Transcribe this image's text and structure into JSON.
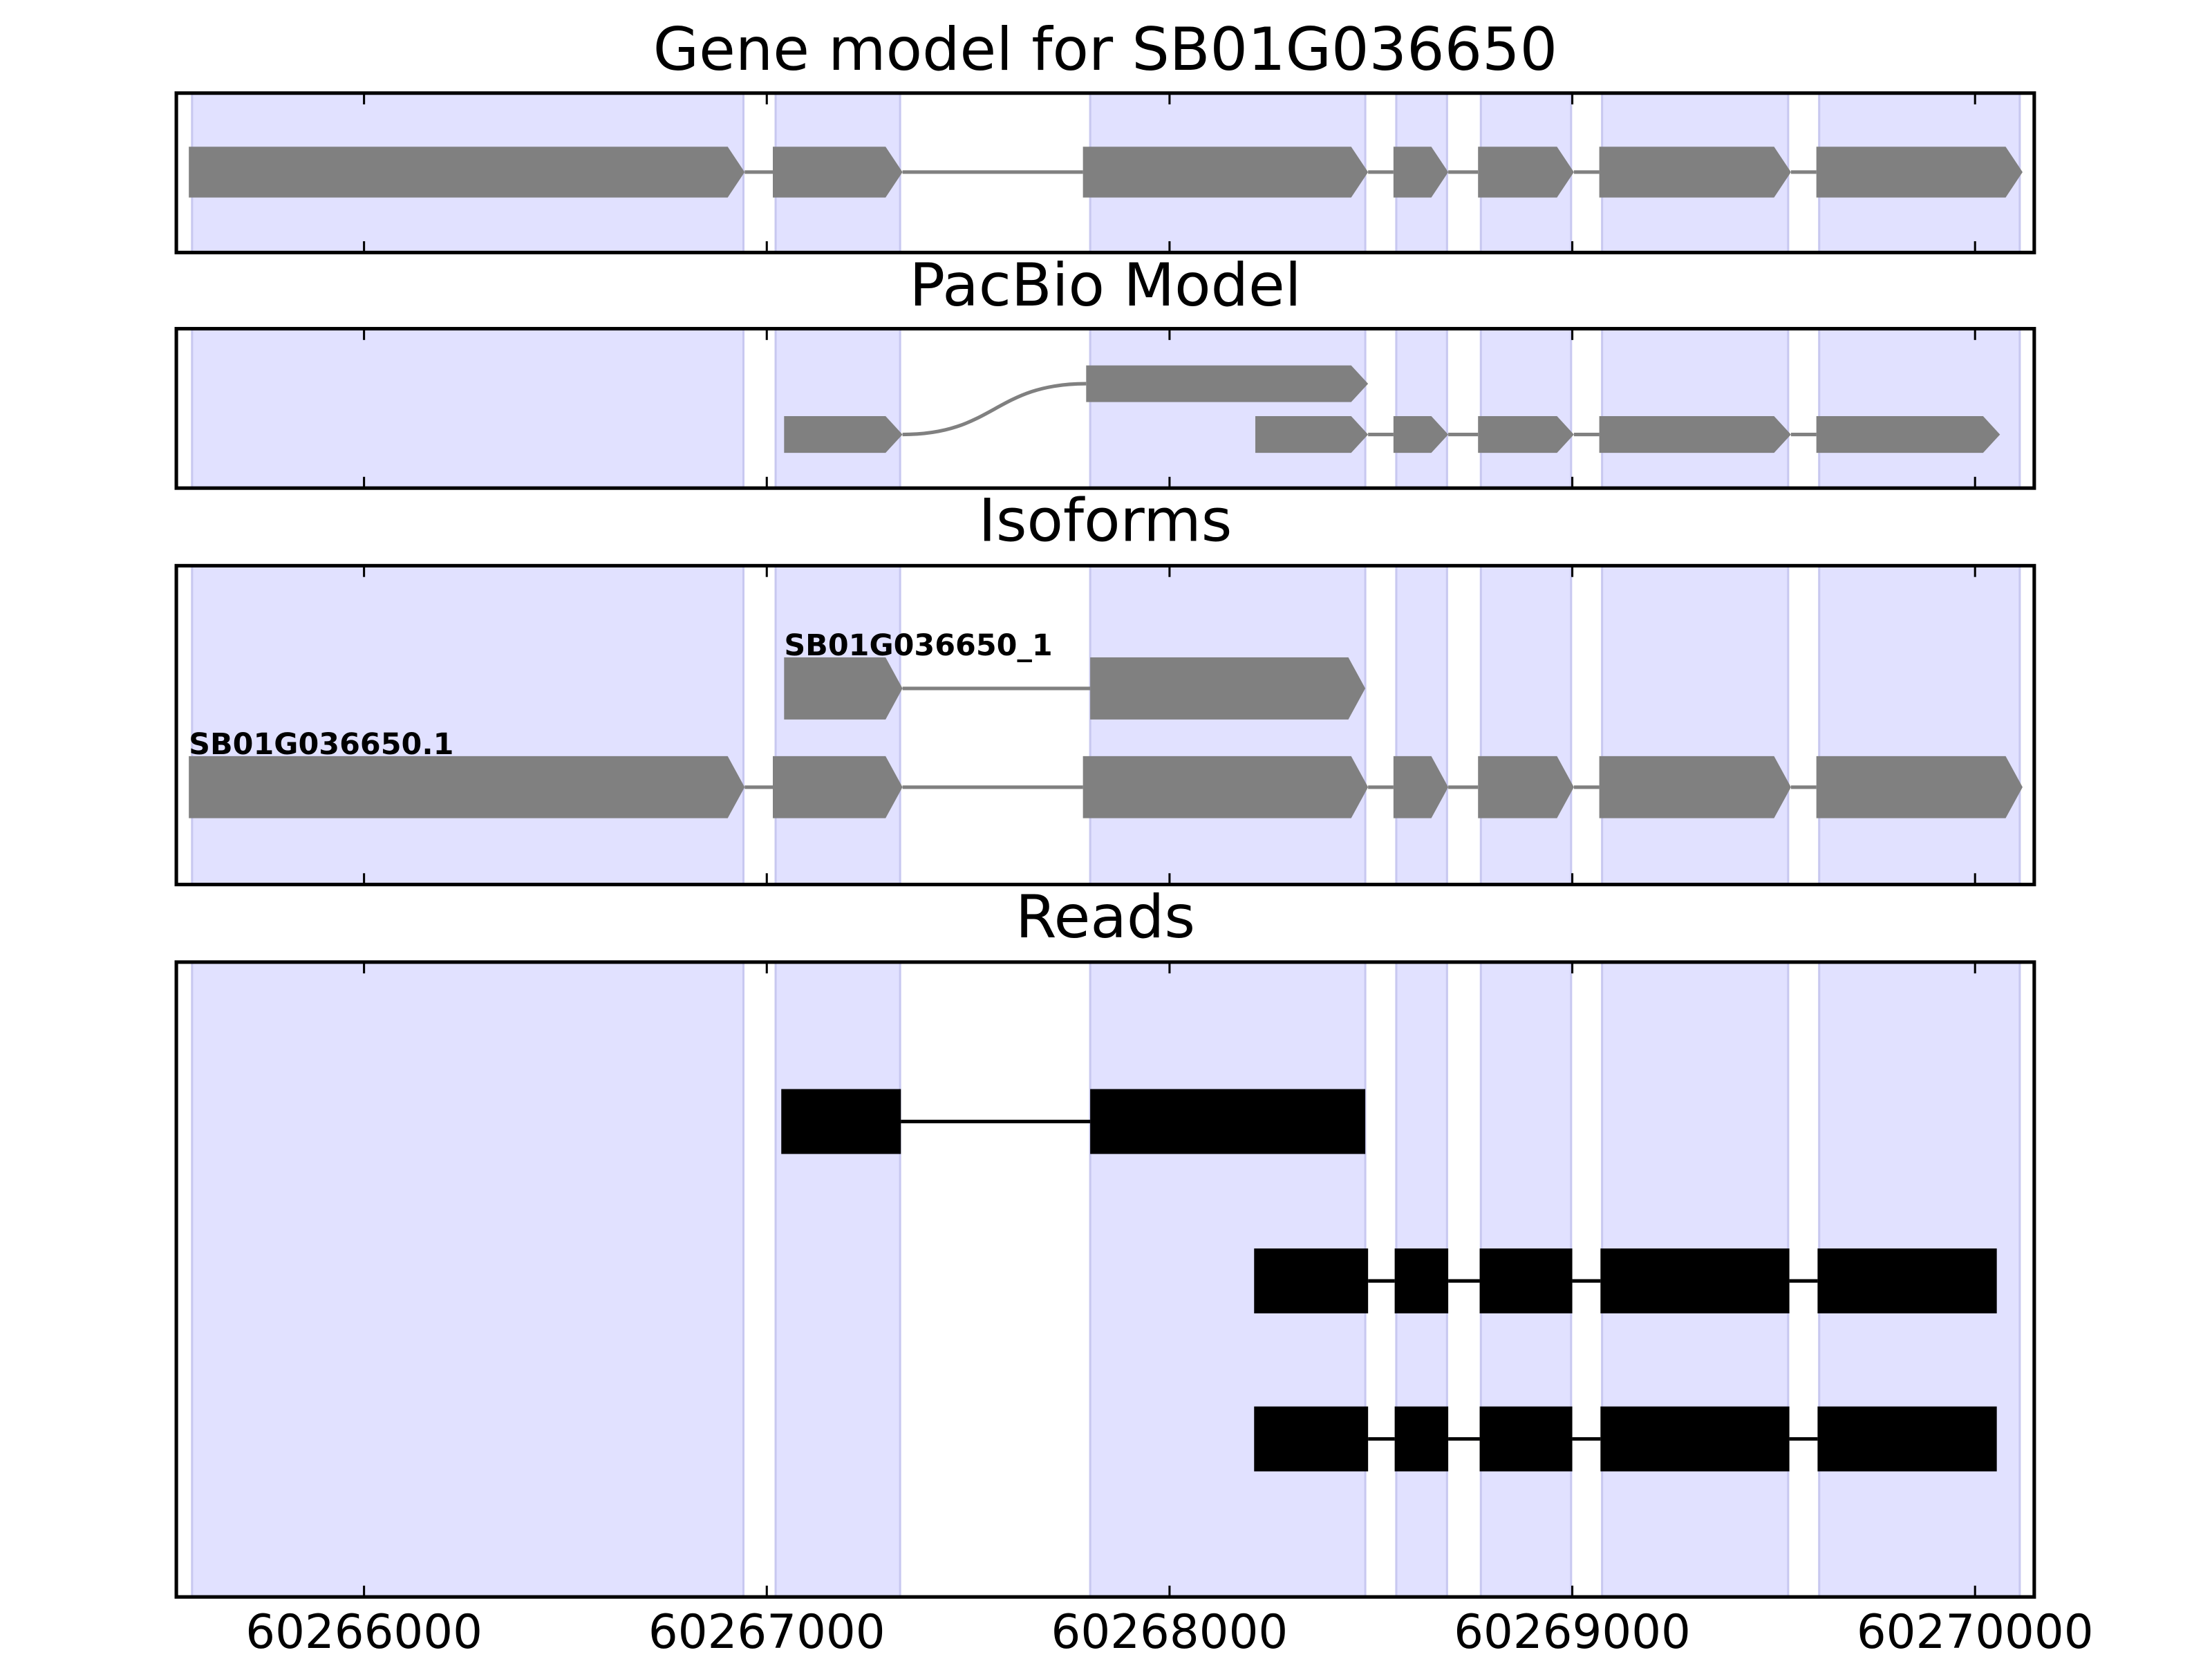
{
  "chart_data": [
    {
      "type": "gene",
      "title": "Gene model for SB01G036650",
      "color": "#808080",
      "region_color": "#e1e1ff",
      "xlim": [
        60265534,
        60270147
      ],
      "xticks": [
        60266000,
        60267000,
        60268000,
        60269000,
        60270000
      ],
      "regions": [
        [
          60265573,
          60266942
        ],
        [
          60267022,
          60267331
        ],
        [
          60267803,
          60268486
        ],
        [
          60268563,
          60268689
        ],
        [
          60268773,
          60268997
        ],
        [
          60269074,
          60269536
        ],
        [
          60269613,
          60270111
        ]
      ],
      "transcripts": [
        {
          "exons": [
            [
              60265565,
              60266945
            ],
            [
              60267015,
              60267337
            ],
            [
              60267785,
              60268493
            ],
            [
              60268556,
              60268692
            ],
            [
              60268766,
              60269004
            ],
            [
              60269067,
              60269543
            ],
            [
              60269606,
              60270118
            ]
          ]
        }
      ]
    },
    {
      "type": "gene",
      "title": "PacBio Model",
      "color": "#808080",
      "region_color": "#e1e1ff",
      "xlim": [
        60265534,
        60270147
      ],
      "xticks": [
        60266000,
        60267000,
        60268000,
        60269000,
        60270000
      ],
      "regions": [
        [
          60265573,
          60266942
        ],
        [
          60267022,
          60267331
        ],
        [
          60267803,
          60268486
        ],
        [
          60268563,
          60268689
        ],
        [
          60268773,
          60268997
        ],
        [
          60269074,
          60269536
        ],
        [
          60269613,
          60270111
        ]
      ],
      "transcripts": [
        {
          "exons": [
            [
              60267043,
              60267337
            ],
            [
              60267793,
              60268493
            ]
          ]
        },
        {
          "exons": [
            [
              60268213,
              60268493
            ],
            [
              60268556,
              60268692
            ],
            [
              60268766,
              60269004
            ],
            [
              60269067,
              60269543
            ],
            [
              60269606,
              60270062
            ]
          ]
        }
      ]
    },
    {
      "type": "gene",
      "title": "Isoforms",
      "color": "#808080",
      "region_color": "#e1e1ff",
      "xlim": [
        60265534,
        60270147
      ],
      "xticks": [
        60266000,
        60267000,
        60268000,
        60269000,
        60270000
      ],
      "regions": [
        [
          60265573,
          60266942
        ],
        [
          60267022,
          60267331
        ],
        [
          60267803,
          60268486
        ],
        [
          60268563,
          60268689
        ],
        [
          60268773,
          60268997
        ],
        [
          60269074,
          60269536
        ],
        [
          60269613,
          60270111
        ]
      ],
      "transcripts": [
        {
          "name": "SB01G036650_1",
          "exons": [
            [
              60267043,
              60267337
            ],
            [
              60267803,
              60268486
            ]
          ]
        },
        {
          "name": "SB01G036650.1",
          "exons": [
            [
              60265565,
              60266945
            ],
            [
              60267015,
              60267337
            ],
            [
              60267785,
              60268493
            ],
            [
              60268556,
              60268692
            ],
            [
              60268766,
              60269004
            ],
            [
              60269067,
              60269543
            ],
            [
              60269606,
              60270118
            ]
          ]
        }
      ]
    },
    {
      "type": "reads",
      "title": "Reads",
      "color": "#000000",
      "region_color": "#e1e1ff",
      "show_tick_labels": true,
      "xlim": [
        60265534,
        60270147
      ],
      "xticks": [
        60266000,
        60267000,
        60268000,
        60269000,
        60270000
      ],
      "regions": [
        [
          60265573,
          60266942
        ],
        [
          60267022,
          60267331
        ],
        [
          60267803,
          60268486
        ],
        [
          60268563,
          60268689
        ],
        [
          60268773,
          60268997
        ],
        [
          60269074,
          60269536
        ],
        [
          60269613,
          60270111
        ]
      ],
      "transcripts": [
        {
          "exons": [
            [
              60267036,
              60267333
            ],
            [
              60267803,
              60268486
            ]
          ]
        },
        {
          "exons": [
            [
              60268210,
              60268493
            ],
            [
              60268559,
              60268692
            ],
            [
              60268770,
              60269000
            ],
            [
              60269070,
              60269539
            ],
            [
              60269609,
              60270054
            ]
          ]
        },
        {
          "exons": [
            [
              60268210,
              60268493
            ],
            [
              60268559,
              60268692
            ],
            [
              60268770,
              60269000
            ],
            [
              60269070,
              60269539
            ],
            [
              60269609,
              60270054
            ]
          ]
        }
      ]
    }
  ]
}
